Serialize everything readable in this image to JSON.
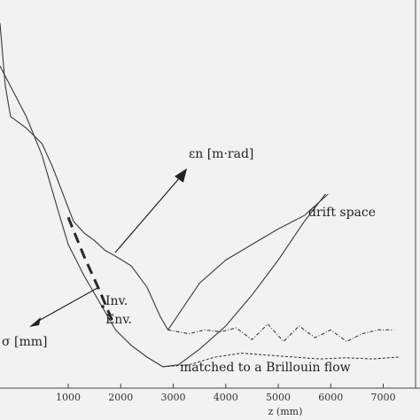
{
  "chart_data": {
    "type": "line",
    "title": "",
    "xlabel": "z (mm)",
    "ylabel": "",
    "xlim": [
      -300,
      7700
    ],
    "ylim": [
      0,
      1
    ],
    "x_ticks": [
      1000,
      2000,
      3000,
      4000,
      5000,
      6000,
      7000
    ],
    "grid": false,
    "series": [
      {
        "name": "εn drift space",
        "style": "solid",
        "x": [
          -300,
          -200,
          -100,
          200,
          500,
          700,
          900,
          1100,
          1300,
          1500,
          1700,
          1900,
          2200,
          2500,
          2750,
          2900,
          3100,
          3500,
          4000,
          4500,
          5000,
          5500,
          5950
        ],
        "y": [
          0.94,
          0.78,
          0.7,
          0.67,
          0.63,
          0.57,
          0.5,
          0.43,
          0.4,
          0.38,
          0.355,
          0.34,
          0.315,
          0.26,
          0.185,
          0.15,
          0.19,
          0.27,
          0.33,
          0.37,
          0.41,
          0.445,
          0.5
        ]
      },
      {
        "name": "εn matched to a Brillouin flow",
        "style": "dotted",
        "x": [
          2900,
          3300,
          3600,
          3900,
          4200,
          4500,
          4800,
          5100,
          5400,
          5700,
          6000,
          6300,
          6600,
          6900,
          7200
        ],
        "y": [
          0.15,
          0.14,
          0.15,
          0.145,
          0.155,
          0.125,
          0.165,
          0.12,
          0.16,
          0.13,
          0.15,
          0.12,
          0.14,
          0.15,
          0.15
        ]
      },
      {
        "name": "σ drift space",
        "style": "solid",
        "x": [
          -300,
          200,
          500,
          800,
          1000,
          1300,
          1600,
          1900,
          2200,
          2500,
          2800,
          3100,
          3500,
          4000,
          4500,
          5000,
          5500,
          5900
        ],
        "y": [
          0.83,
          0.7,
          0.6,
          0.46,
          0.37,
          0.29,
          0.22,
          0.15,
          0.11,
          0.08,
          0.055,
          0.06,
          0.1,
          0.16,
          0.24,
          0.33,
          0.43,
          0.5
        ]
      },
      {
        "name": "σ matched to a Brillouin flow",
        "style": "dashed",
        "x": [
          2800,
          3300,
          3800,
          4300,
          4800,
          5300,
          5800,
          6300,
          6800,
          7300
        ],
        "y": [
          0.055,
          0.06,
          0.08,
          0.09,
          0.085,
          0.08,
          0.075,
          0.078,
          0.075,
          0.08
        ]
      },
      {
        "name": "Inv. Env.",
        "style": "thick-dashed",
        "x": [
          1000,
          1300,
          1600,
          1850
        ],
        "y": [
          0.44,
          0.34,
          0.25,
          0.17
        ]
      }
    ],
    "annotations": {
      "emittance_label": "εn [m·rad]",
      "sigma_label": "σ [mm]",
      "drift_label": "drift space",
      "brillouin_label": "matched to a Brillouin flow",
      "inv_label_1": "Inv.",
      "inv_label_2": "Env."
    }
  }
}
